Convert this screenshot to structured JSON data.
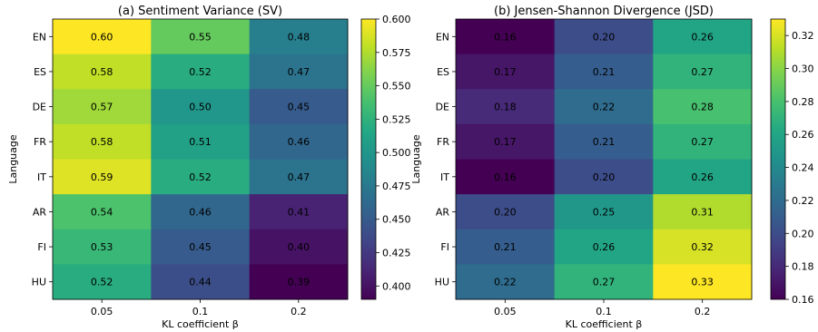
{
  "chart_data": [
    {
      "type": "heatmap",
      "title": "(a) Sentiment Variance (SV)",
      "xlabel": "KL coefficient β",
      "ylabel": "Language",
      "x_categories": [
        "0.05",
        "0.1",
        "0.2"
      ],
      "y_categories": [
        "EN",
        "ES",
        "DE",
        "FR",
        "IT",
        "AR",
        "FI",
        "HU"
      ],
      "values": [
        [
          0.6,
          0.55,
          0.48
        ],
        [
          0.58,
          0.52,
          0.47
        ],
        [
          0.57,
          0.5,
          0.45
        ],
        [
          0.58,
          0.51,
          0.46
        ],
        [
          0.59,
          0.52,
          0.47
        ],
        [
          0.54,
          0.46,
          0.41
        ],
        [
          0.53,
          0.45,
          0.4
        ],
        [
          0.52,
          0.44,
          0.39
        ]
      ],
      "value_labels": [
        [
          "0.60",
          "0.55",
          "0.48"
        ],
        [
          "0.58",
          "0.52",
          "0.47"
        ],
        [
          "0.57",
          "0.50",
          "0.45"
        ],
        [
          "0.58",
          "0.51",
          "0.46"
        ],
        [
          "0.59",
          "0.52",
          "0.47"
        ],
        [
          "0.54",
          "0.46",
          "0.41"
        ],
        [
          "0.53",
          "0.45",
          "0.40"
        ],
        [
          "0.52",
          "0.44",
          "0.39"
        ]
      ],
      "colormap": "viridis",
      "vmin": 0.39,
      "vmax": 0.6,
      "colorbar_ticks": [
        0.4,
        0.425,
        0.45,
        0.475,
        0.5,
        0.525,
        0.55,
        0.575,
        0.6
      ],
      "colorbar_tick_labels": [
        "0.400",
        "0.425",
        "0.450",
        "0.475",
        "0.500",
        "0.525",
        "0.550",
        "0.575",
        "0.600"
      ]
    },
    {
      "type": "heatmap",
      "title": "(b) Jensen-Shannon Divergence (JSD)",
      "xlabel": "KL coefficient β",
      "ylabel": "Language",
      "x_categories": [
        "0.05",
        "0.1",
        "0.2"
      ],
      "y_categories": [
        "EN",
        "ES",
        "DE",
        "FR",
        "IT",
        "AR",
        "FI",
        "HU"
      ],
      "values": [
        [
          0.16,
          0.2,
          0.26
        ],
        [
          0.17,
          0.21,
          0.27
        ],
        [
          0.18,
          0.22,
          0.28
        ],
        [
          0.17,
          0.21,
          0.27
        ],
        [
          0.16,
          0.2,
          0.26
        ],
        [
          0.2,
          0.25,
          0.31
        ],
        [
          0.21,
          0.26,
          0.32
        ],
        [
          0.22,
          0.27,
          0.33
        ]
      ],
      "value_labels": [
        [
          "0.16",
          "0.20",
          "0.26"
        ],
        [
          "0.17",
          "0.21",
          "0.27"
        ],
        [
          "0.18",
          "0.22",
          "0.28"
        ],
        [
          "0.17",
          "0.21",
          "0.27"
        ],
        [
          "0.16",
          "0.20",
          "0.26"
        ],
        [
          "0.20",
          "0.25",
          "0.31"
        ],
        [
          "0.21",
          "0.26",
          "0.32"
        ],
        [
          "0.22",
          "0.27",
          "0.33"
        ]
      ],
      "colormap": "viridis",
      "vmin": 0.16,
      "vmax": 0.33,
      "colorbar_ticks": [
        0.16,
        0.18,
        0.2,
        0.22,
        0.24,
        0.26,
        0.28,
        0.3,
        0.32
      ],
      "colorbar_tick_labels": [
        "0.16",
        "0.18",
        "0.20",
        "0.22",
        "0.24",
        "0.26",
        "0.28",
        "0.30",
        "0.32"
      ]
    }
  ]
}
